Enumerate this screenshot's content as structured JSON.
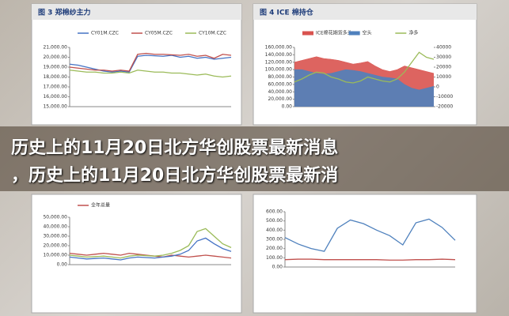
{
  "headline": [
    "历史上的11月20日北方华创股票最新消息",
    "，历史上的11月20日北方华创股票最新消"
  ],
  "chart_data": [
    {
      "type": "line",
      "title": "图 3 郑棉纱主力",
      "ylim": [
        15000,
        21000
      ],
      "yticks": [
        {
          "value": 15000,
          "label": "15,000.00"
        },
        {
          "value": 16000,
          "label": "16,000.00"
        },
        {
          "value": 17000,
          "label": "17,000.00"
        },
        {
          "value": 18000,
          "label": "18,000.00"
        },
        {
          "value": 19000,
          "label": "19,000.00"
        },
        {
          "value": 20000,
          "label": "20,000.00"
        },
        {
          "value": 21000,
          "label": "21,000.00"
        }
      ],
      "series": [
        {
          "name": "CY01M.CZC",
          "color": "#4472c4",
          "values": [
            19300,
            19200,
            19000,
            18800,
            18600,
            18500,
            18600,
            18500,
            20100,
            20200,
            20150,
            20100,
            20200,
            20000,
            20100,
            19900,
            20000,
            19800,
            19900,
            20000
          ]
        },
        {
          "name": "CY05M.CZC",
          "color": "#c0504d",
          "values": [
            19000,
            18900,
            18800,
            18700,
            18700,
            18600,
            18700,
            18600,
            20300,
            20400,
            20300,
            20300,
            20250,
            20200,
            20300,
            20100,
            20200,
            19900,
            20300,
            20200
          ]
        },
        {
          "name": "CY10M.CZC",
          "color": "#9bbb59",
          "values": [
            18700,
            18600,
            18500,
            18500,
            18400,
            18400,
            18500,
            18400,
            18700,
            18600,
            18500,
            18500,
            18400,
            18400,
            18300,
            18200,
            18300,
            18100,
            18000,
            18100
          ]
        }
      ]
    },
    {
      "type": "area",
      "title": "图 4 ICE 棉持仓",
      "ylim": [
        0,
        160000
      ],
      "yticks": [
        {
          "value": 0,
          "label": "0.00"
        },
        {
          "value": 20000,
          "label": "20,000.00"
        },
        {
          "value": 40000,
          "label": "40,000.00"
        },
        {
          "value": 60000,
          "label": "60,000.00"
        },
        {
          "value": 80000,
          "label": "80,000.00"
        },
        {
          "value": 100000,
          "label": "100,000.00"
        },
        {
          "value": 120000,
          "label": "120,000.00"
        },
        {
          "value": 140000,
          "label": "140,000.00"
        },
        {
          "value": 160000,
          "label": "160,000.00"
        }
      ],
      "y2lim": [
        -20000,
        40000
      ],
      "y2ticks": [
        -20000,
        -10000,
        0,
        10000,
        20000,
        30000,
        40000
      ],
      "series": [
        {
          "name": "ICE棉花期货多头",
          "color": "#d9534f",
          "values": [
            120000,
            125000,
            130000,
            135000,
            130000,
            128000,
            125000,
            120000,
            115000,
            118000,
            122000,
            110000,
            100000,
            95000,
            100000,
            110000,
            105000,
            100000,
            95000,
            90000
          ]
        },
        {
          "name": "空头",
          "color": "#4f81bd",
          "values": [
            100000,
            100000,
            95000,
            90000,
            88000,
            90000,
            95000,
            100000,
            98000,
            95000,
            90000,
            85000,
            80000,
            78000,
            75000,
            60000,
            50000,
            45000,
            50000,
            55000
          ]
        },
        {
          "name": "净多",
          "color": "#9bbb59",
          "axis": "y2",
          "values": [
            5000,
            8000,
            12000,
            15000,
            14000,
            10000,
            8000,
            5000,
            4000,
            6000,
            10000,
            8000,
            6000,
            5000,
            8000,
            15000,
            25000,
            35000,
            30000,
            28000
          ]
        }
      ]
    },
    {
      "type": "line",
      "ylim": [
        0,
        50000
      ],
      "yticks": [
        {
          "value": 0,
          "label": "0.00"
        },
        {
          "value": 10000,
          "label": "10,000.00"
        },
        {
          "value": 20000,
          "label": "20,000.00"
        },
        {
          "value": 30000,
          "label": "30,000.00"
        },
        {
          "value": 40000,
          "label": "40,000.00"
        },
        {
          "value": 50000,
          "label": "50,000.00"
        }
      ],
      "series": [
        {
          "name": "全年总量",
          "color": "#c0504d",
          "values": [
            12000,
            11000,
            10000,
            11000,
            12000,
            11000,
            10000,
            12000,
            11000,
            10000,
            9000,
            8000,
            10000,
            9000,
            8000,
            9000,
            10000,
            9000,
            8000,
            7000
          ]
        },
        {
          "color": "#9bbb59",
          "values": [
            10000,
            9000,
            8000,
            8500,
            9000,
            8000,
            7000,
            9000,
            10000,
            9500,
            9000,
            10000,
            12000,
            15000,
            20000,
            35000,
            38000,
            30000,
            22000,
            18000
          ]
        },
        {
          "color": "#4472c4",
          "values": [
            8000,
            7000,
            6000,
            6500,
            7000,
            6000,
            5000,
            7000,
            8000,
            7500,
            7000,
            8000,
            9000,
            11000,
            15000,
            25000,
            28000,
            22000,
            17000,
            14000
          ]
        }
      ]
    },
    {
      "type": "line",
      "ylim": [
        0,
        600
      ],
      "yticks": [
        {
          "value": 0,
          "label": "0.00"
        },
        {
          "value": 100,
          "label": "100.00"
        },
        {
          "value": 200,
          "label": "200.00"
        },
        {
          "value": 300,
          "label": "300.00"
        },
        {
          "value": 400,
          "label": "400.00"
        },
        {
          "value": 500,
          "label": "500.00"
        },
        {
          "value": 600,
          "label": "600.00"
        }
      ],
      "series": [
        {
          "color": "#4f81bd",
          "values": [
            320,
            250,
            200,
            170,
            420,
            510,
            470,
            400,
            340,
            240,
            480,
            520,
            430,
            290
          ]
        },
        {
          "color": "#c0504d",
          "values": [
            80,
            85,
            85,
            80,
            80,
            80,
            80,
            80,
            75,
            75,
            80,
            80,
            85,
            80
          ]
        }
      ]
    }
  ]
}
